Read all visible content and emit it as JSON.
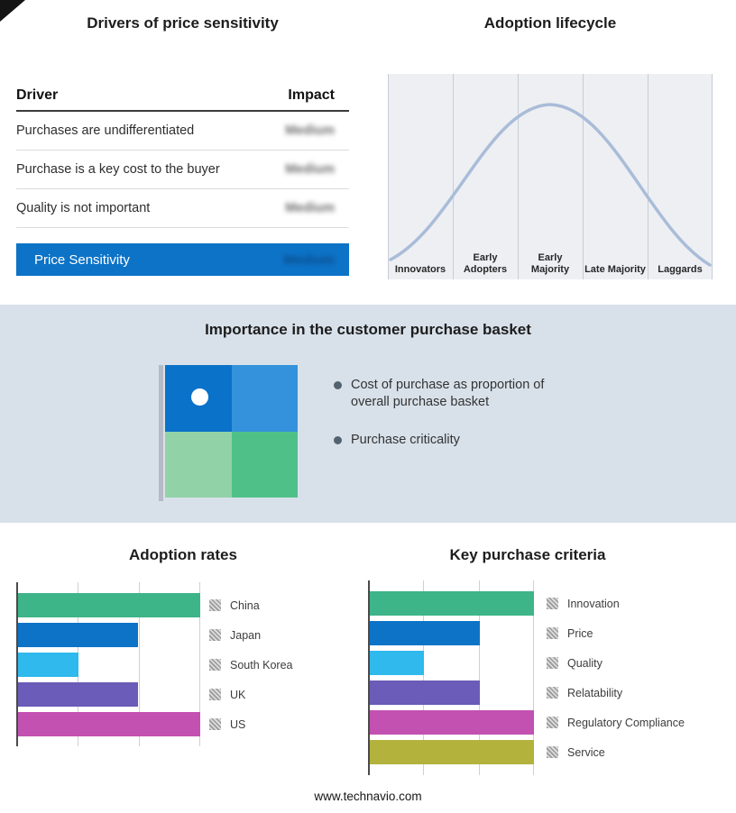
{
  "drivers_panel": {
    "title": "Drivers of price sensitivity",
    "header": {
      "driver": "Driver",
      "impact": "Impact"
    },
    "rows": [
      {
        "driver": "Purchases are undifferentiated",
        "impact": "Medium"
      },
      {
        "driver": "Purchase is a key cost to the buyer",
        "impact": "Medium"
      },
      {
        "driver": "Quality is not important",
        "impact": "Medium"
      }
    ],
    "summary": {
      "label": "Price Sensitivity",
      "impact": "Medium"
    },
    "accent_color": "#0d73c7"
  },
  "basket_panel": {
    "title": "Importance in the customer purchase basket",
    "bullets": [
      "Cost of purchase as proportion of overall purchase basket",
      "Purchase criticality"
    ],
    "quadrant_colors": {
      "top_left": "#0b72c9",
      "top_right": "#3492dc",
      "bottom_left": "#92d2a7",
      "bottom_right": "#50c089"
    },
    "band_background": "#d8e1ea"
  },
  "chart_data": [
    {
      "type": "line",
      "title": "Adoption lifecycle",
      "categories": [
        "Innovators",
        "Early Adopters",
        "Early Majority",
        "Late Majority",
        "Laggards"
      ],
      "description": "Bell curve across adoption stages, peak over Early Majority",
      "line_color": "#a9bcd8",
      "background": "#edeff3",
      "grid": true
    },
    {
      "type": "bar",
      "title": "Adoption rates",
      "orientation": "horizontal",
      "categories": [
        "China",
        "Japan",
        "South Korea",
        "UK",
        "US"
      ],
      "values": [
        100,
        66,
        33,
        66,
        100
      ],
      "colors": [
        "#3eb489",
        "#0d73c7",
        "#2fb9ec",
        "#6a5cb8",
        "#c351b1"
      ],
      "xlim": [
        0,
        100
      ],
      "grid": true,
      "legend_position": "right"
    },
    {
      "type": "bar",
      "title": "Key purchase criteria",
      "orientation": "horizontal",
      "categories": [
        "Innovation",
        "Price",
        "Quality",
        "Relatability",
        "Regulatory Compliance",
        "Service"
      ],
      "values": [
        100,
        67,
        33,
        67,
        100,
        100
      ],
      "colors": [
        "#3eb489",
        "#0d73c7",
        "#2fb9ec",
        "#6a5cb8",
        "#c351b1",
        "#b2b23c"
      ],
      "xlim": [
        0,
        100
      ],
      "grid": true,
      "legend_position": "right"
    }
  ],
  "footer": {
    "text": "www.technavio.com"
  }
}
